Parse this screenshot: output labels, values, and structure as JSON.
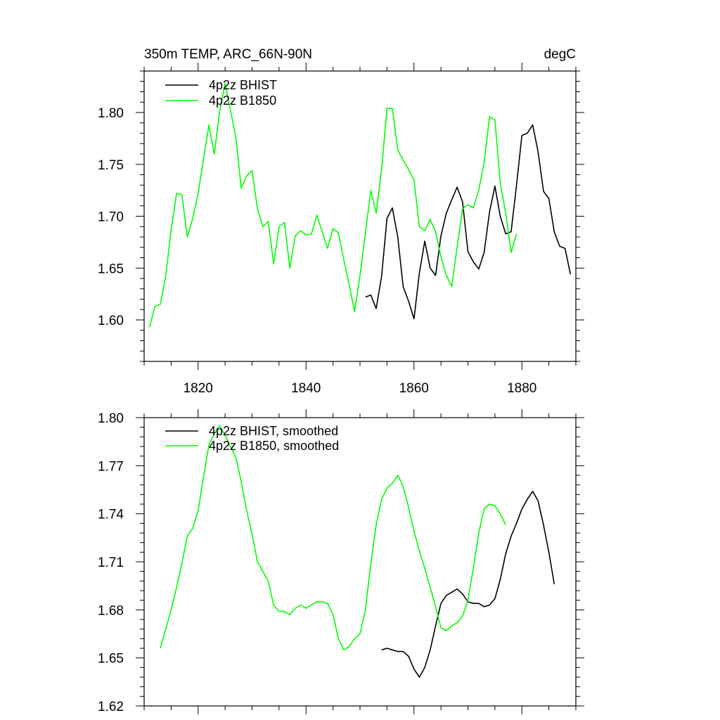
{
  "chart_data": [
    {
      "type": "line",
      "title": "350m TEMP, ARC_66N-90N",
      "units": "degC",
      "xlabel": "",
      "ylabel": "",
      "xlim": [
        1810,
        1890
      ],
      "ylim": [
        1.56,
        1.84
      ],
      "x_ticks": [
        1820,
        1840,
        1860,
        1880
      ],
      "x_tick_labels": [
        "1820",
        "1840",
        "1860",
        "1880"
      ],
      "y_ticks": [
        1.6,
        1.65,
        1.7,
        1.75,
        1.8
      ],
      "y_tick_labels": [
        "1.60",
        "1.65",
        "1.70",
        "1.75",
        "1.80"
      ],
      "legend_position": "top-left",
      "series": [
        {
          "name": "4p2z BHIST",
          "color": "#000000",
          "x": [
            1851,
            1852,
            1853,
            1854,
            1855,
            1856,
            1857,
            1858,
            1859,
            1860,
            1861,
            1862,
            1863,
            1864,
            1865,
            1866,
            1867,
            1868,
            1869,
            1870,
            1871,
            1872,
            1873,
            1874,
            1875,
            1876,
            1877,
            1878,
            1879,
            1880,
            1881,
            1882,
            1883,
            1884,
            1885,
            1886,
            1887,
            1888,
            1889
          ],
          "y": [
            1.622,
            1.624,
            1.611,
            1.642,
            1.698,
            1.708,
            1.68,
            1.632,
            1.618,
            1.601,
            1.645,
            1.676,
            1.65,
            1.643,
            1.681,
            1.703,
            1.716,
            1.728,
            1.714,
            1.666,
            1.656,
            1.649,
            1.665,
            1.704,
            1.729,
            1.7,
            1.683,
            1.685,
            1.73,
            1.778,
            1.78,
            1.788,
            1.762,
            1.724,
            1.717,
            1.685,
            1.671,
            1.669,
            1.644
          ]
        },
        {
          "name": "4p2z B1850",
          "color": "#00ff00",
          "x": [
            1811,
            1812,
            1813,
            1814,
            1815,
            1816,
            1817,
            1818,
            1819,
            1820,
            1821,
            1822,
            1823,
            1824,
            1825,
            1826,
            1827,
            1828,
            1829,
            1830,
            1831,
            1832,
            1833,
            1834,
            1835,
            1836,
            1837,
            1838,
            1839,
            1840,
            1841,
            1842,
            1843,
            1844,
            1845,
            1846,
            1847,
            1848,
            1849,
            1850,
            1851,
            1852,
            1853,
            1854,
            1855,
            1856,
            1857,
            1858,
            1859,
            1860,
            1861,
            1862,
            1863,
            1864,
            1865,
            1866,
            1867,
            1868,
            1869,
            1870,
            1871,
            1872,
            1873,
            1874,
            1875,
            1876,
            1877,
            1878,
            1879
          ],
          "y": [
            1.593,
            1.613,
            1.615,
            1.642,
            1.687,
            1.722,
            1.721,
            1.68,
            1.698,
            1.722,
            1.755,
            1.788,
            1.76,
            1.801,
            1.828,
            1.802,
            1.776,
            1.727,
            1.739,
            1.744,
            1.707,
            1.69,
            1.695,
            1.654,
            1.69,
            1.694,
            1.65,
            1.681,
            1.686,
            1.682,
            1.683,
            1.701,
            1.685,
            1.669,
            1.688,
            1.684,
            1.658,
            1.634,
            1.608,
            1.643,
            1.684,
            1.725,
            1.703,
            1.745,
            1.804,
            1.804,
            1.764,
            1.754,
            1.745,
            1.735,
            1.69,
            1.686,
            1.697,
            1.685,
            1.661,
            1.643,
            1.632,
            1.67,
            1.707,
            1.711,
            1.708,
            1.725,
            1.752,
            1.796,
            1.793,
            1.732,
            1.703,
            1.665,
            1.683
          ]
        }
      ]
    },
    {
      "type": "line",
      "title": "",
      "xlabel": "",
      "ylabel": "",
      "xlim": [
        1810,
        1890
      ],
      "ylim": [
        1.62,
        1.8
      ],
      "y_ticks": [
        1.62,
        1.65,
        1.68,
        1.71,
        1.74,
        1.77,
        1.8
      ],
      "y_tick_labels": [
        "1.62",
        "1.65",
        "1.68",
        "1.71",
        "1.74",
        "1.77",
        "1.80"
      ],
      "legend_position": "top-left",
      "series": [
        {
          "name": "4p2z BHIST, smoothed",
          "color": "#000000",
          "x": [
            1854,
            1855,
            1856,
            1857,
            1858,
            1859,
            1860,
            1861,
            1862,
            1863,
            1864,
            1865,
            1866,
            1867,
            1868,
            1869,
            1870,
            1871,
            1872,
            1873,
            1874,
            1875,
            1876,
            1877,
            1878,
            1879,
            1880,
            1881,
            1882,
            1883,
            1884,
            1885,
            1886
          ],
          "y": [
            1.655,
            1.656,
            1.655,
            1.654,
            1.654,
            1.651,
            1.643,
            1.638,
            1.644,
            1.655,
            1.67,
            1.684,
            1.689,
            1.691,
            1.693,
            1.69,
            1.685,
            1.684,
            1.684,
            1.682,
            1.683,
            1.687,
            1.699,
            1.715,
            1.726,
            1.734,
            1.743,
            1.749,
            1.754,
            1.748,
            1.733,
            1.716,
            1.696
          ]
        },
        {
          "name": "4p2z B1850, smoothed",
          "color": "#00ff00",
          "x": [
            1813,
            1814,
            1815,
            1816,
            1817,
            1818,
            1819,
            1820,
            1821,
            1822,
            1823,
            1824,
            1825,
            1826,
            1827,
            1828,
            1829,
            1830,
            1831,
            1832,
            1833,
            1834,
            1835,
            1836,
            1837,
            1838,
            1839,
            1840,
            1841,
            1842,
            1843,
            1844,
            1845,
            1846,
            1847,
            1848,
            1849,
            1850,
            1851,
            1852,
            1853,
            1854,
            1855,
            1856,
            1857,
            1858,
            1859,
            1860,
            1861,
            1862,
            1863,
            1864,
            1865,
            1866,
            1867,
            1868,
            1869,
            1870,
            1871,
            1872,
            1873,
            1874,
            1875,
            1876,
            1877
          ],
          "y": [
            1.656,
            1.668,
            1.68,
            1.694,
            1.709,
            1.726,
            1.731,
            1.742,
            1.763,
            1.783,
            1.79,
            1.795,
            1.789,
            1.782,
            1.775,
            1.76,
            1.742,
            1.727,
            1.71,
            1.704,
            1.698,
            1.683,
            1.679,
            1.679,
            1.677,
            1.681,
            1.683,
            1.681,
            1.683,
            1.685,
            1.685,
            1.684,
            1.677,
            1.662,
            1.655,
            1.657,
            1.662,
            1.665,
            1.68,
            1.709,
            1.733,
            1.749,
            1.756,
            1.759,
            1.764,
            1.757,
            1.744,
            1.729,
            1.717,
            1.706,
            1.694,
            1.682,
            1.669,
            1.667,
            1.67,
            1.672,
            1.676,
            1.686,
            1.706,
            1.728,
            1.743,
            1.746,
            1.745,
            1.74,
            1.733
          ]
        }
      ]
    }
  ]
}
